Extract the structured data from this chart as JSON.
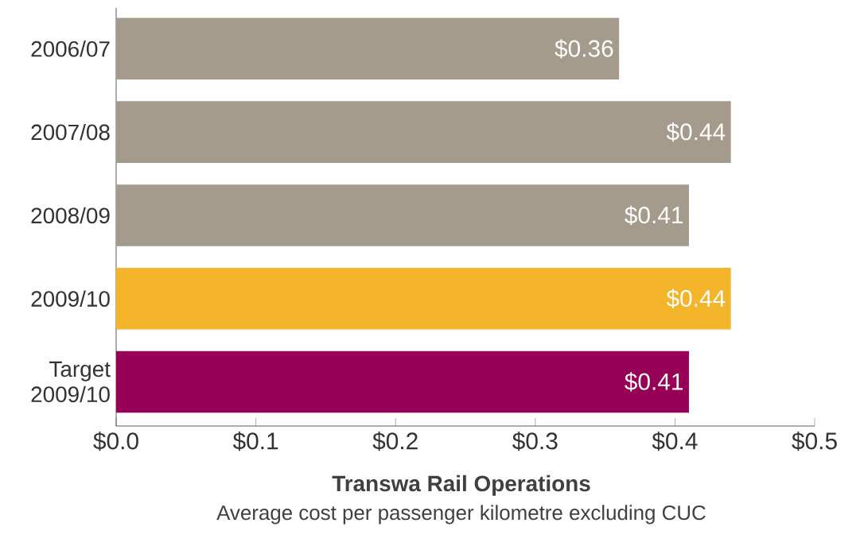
{
  "chart_data": {
    "type": "bar",
    "orientation": "horizontal",
    "title": "Transwa Rail Operations",
    "subtitle": "Average cost per passenger kilometre excluding CUC",
    "categories": [
      "2006/07",
      "2007/08",
      "2008/09",
      "2009/10",
      "Target 2009/10"
    ],
    "values": [
      0.36,
      0.44,
      0.41,
      0.44,
      0.41
    ],
    "colors": [
      "#a59b8c",
      "#a59b8c",
      "#a59b8c",
      "#f5b52a",
      "#960056"
    ],
    "value_labels": [
      "$0.36",
      "$0.44",
      "$0.41",
      "$0.44",
      "$0.41"
    ],
    "xlim": [
      0,
      0.5
    ],
    "xticks": [
      {
        "value": 0,
        "label": "$0.0"
      },
      {
        "value": 0.1,
        "label": "$0.1"
      },
      {
        "value": 0.2,
        "label": "$0.2"
      },
      {
        "value": 0.3,
        "label": "$0.3"
      },
      {
        "value": 0.4,
        "label": "$0.4"
      },
      {
        "value": 0.5,
        "label": "$0.5"
      }
    ],
    "grid": false
  }
}
